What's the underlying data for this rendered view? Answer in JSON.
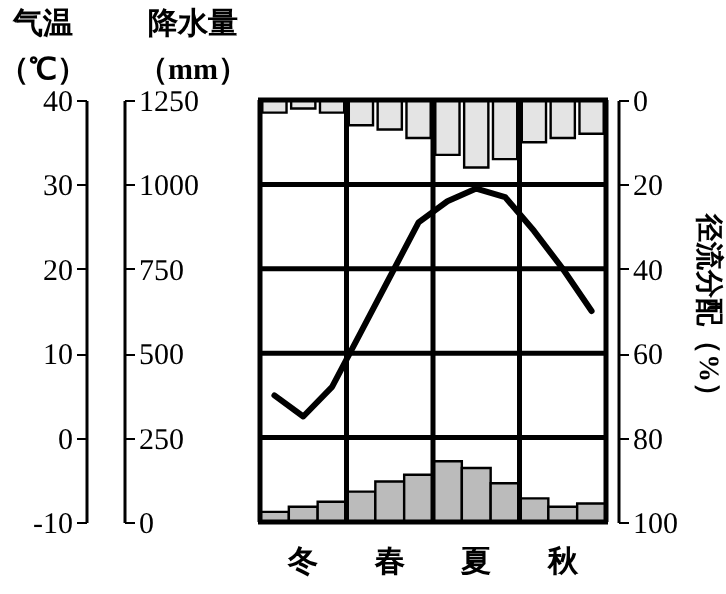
{
  "chart_data": {
    "type": "bar",
    "categories": [
      null,
      "冬",
      null,
      null,
      "春",
      null,
      null,
      "夏",
      null,
      null,
      "秋",
      null
    ],
    "ylabel": "降水量（mm）",
    "y2label": "径流分配（%）",
    "y3label": "气温（℃）",
    "series": [
      {
        "axis": "y",
        "color": "#bbbbbb",
        "values": [
          30,
          45,
          60,
          90,
          120,
          140,
          180,
          160,
          115,
          70,
          45,
          55
        ]
      },
      {
        "axis": "y2",
        "color": "#e4e4e4",
        "values": [
          3,
          2,
          3,
          6,
          7,
          9,
          13,
          16,
          14,
          10,
          9,
          8
        ]
      },
      {
        "type": "line",
        "axis": "y3",
        "color": "#000000",
        "values": [
          5,
          2.5,
          6,
          12.5,
          19,
          25.5,
          28,
          29.5,
          28.5,
          24.5,
          20,
          15
        ]
      }
    ],
    "ylim": [
      0,
      1250
    ],
    "yticks": [
      0,
      250,
      500,
      750,
      1000,
      1250
    ],
    "y2lim": [
      100,
      0
    ],
    "y2ticks": [
      0,
      20,
      40,
      60,
      80,
      100
    ],
    "y3lim": [
      -10,
      40
    ],
    "y3ticks": [
      -10,
      0,
      10,
      20,
      30,
      40
    ],
    "grid": true,
    "marker": "none"
  }
}
